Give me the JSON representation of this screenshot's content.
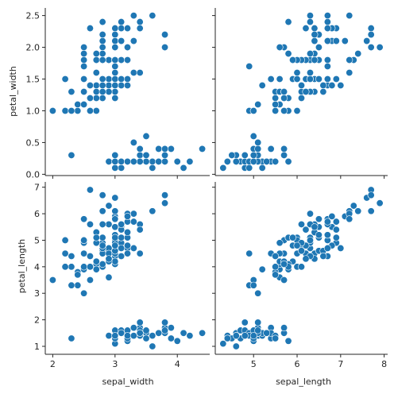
{
  "chart_data": {
    "type": "scatter",
    "kind": "pairgrid",
    "marker_color": "#1f77b4",
    "marker_edge": "#ffffff",
    "grid": false,
    "x_vars": [
      {
        "name": "sepal_width",
        "label": "sepal_width",
        "range": [
          1.88,
          4.52
        ],
        "ticks": [
          2,
          3,
          4
        ]
      },
      {
        "name": "sepal_length",
        "label": "sepal_length",
        "range": [
          4.12,
          8.08
        ],
        "ticks": [
          5,
          6,
          7,
          8
        ]
      }
    ],
    "y_vars": [
      {
        "name": "petal_width",
        "label": "petal_width",
        "range": [
          -0.02,
          2.62
        ],
        "ticks": [
          0.0,
          0.5,
          1.0,
          1.5,
          2.0,
          2.5
        ],
        "tick_labels": [
          "0.0",
          "0.5",
          "1.0",
          "1.5",
          "2.0",
          "2.5"
        ]
      },
      {
        "name": "petal_length",
        "label": "petal_length",
        "range": [
          0.7,
          7.2
        ],
        "ticks": [
          1,
          2,
          3,
          4,
          5,
          6,
          7
        ],
        "tick_labels": [
          "1",
          "2",
          "3",
          "4",
          "5",
          "6",
          "7"
        ]
      }
    ],
    "points": [
      [
        5.1,
        3.5,
        1.4,
        0.2
      ],
      [
        4.9,
        3.0,
        1.4,
        0.2
      ],
      [
        4.7,
        3.2,
        1.3,
        0.2
      ],
      [
        4.6,
        3.1,
        1.5,
        0.2
      ],
      [
        5.0,
        3.6,
        1.4,
        0.2
      ],
      [
        5.4,
        3.9,
        1.7,
        0.4
      ],
      [
        4.6,
        3.4,
        1.4,
        0.3
      ],
      [
        5.0,
        3.4,
        1.5,
        0.2
      ],
      [
        4.4,
        2.9,
        1.4,
        0.2
      ],
      [
        4.9,
        3.1,
        1.5,
        0.1
      ],
      [
        5.4,
        3.7,
        1.5,
        0.2
      ],
      [
        4.8,
        3.4,
        1.6,
        0.2
      ],
      [
        4.8,
        3.0,
        1.4,
        0.1
      ],
      [
        4.3,
        3.0,
        1.1,
        0.1
      ],
      [
        5.8,
        4.0,
        1.2,
        0.2
      ],
      [
        5.7,
        4.4,
        1.5,
        0.4
      ],
      [
        5.4,
        3.9,
        1.3,
        0.4
      ],
      [
        5.1,
        3.5,
        1.4,
        0.3
      ],
      [
        5.7,
        3.8,
        1.7,
        0.3
      ],
      [
        5.1,
        3.8,
        1.5,
        0.3
      ],
      [
        5.4,
        3.4,
        1.7,
        0.2
      ],
      [
        5.1,
        3.7,
        1.5,
        0.4
      ],
      [
        4.6,
        3.6,
        1.0,
        0.2
      ],
      [
        5.1,
        3.3,
        1.7,
        0.5
      ],
      [
        4.8,
        3.4,
        1.9,
        0.2
      ],
      [
        5.0,
        3.0,
        1.6,
        0.2
      ],
      [
        5.0,
        3.4,
        1.6,
        0.4
      ],
      [
        5.2,
        3.5,
        1.5,
        0.2
      ],
      [
        5.2,
        3.4,
        1.4,
        0.2
      ],
      [
        4.7,
        3.2,
        1.6,
        0.2
      ],
      [
        4.8,
        3.1,
        1.6,
        0.2
      ],
      [
        5.4,
        3.4,
        1.5,
        0.4
      ],
      [
        5.2,
        4.1,
        1.5,
        0.1
      ],
      [
        5.5,
        4.2,
        1.4,
        0.2
      ],
      [
        4.9,
        3.1,
        1.5,
        0.2
      ],
      [
        5.0,
        3.2,
        1.2,
        0.2
      ],
      [
        5.5,
        3.5,
        1.3,
        0.2
      ],
      [
        4.9,
        3.6,
        1.4,
        0.1
      ],
      [
        4.4,
        3.0,
        1.3,
        0.2
      ],
      [
        5.1,
        3.4,
        1.5,
        0.2
      ],
      [
        5.0,
        3.5,
        1.3,
        0.3
      ],
      [
        4.5,
        2.3,
        1.3,
        0.3
      ],
      [
        4.4,
        3.2,
        1.3,
        0.2
      ],
      [
        5.0,
        3.5,
        1.6,
        0.6
      ],
      [
        5.1,
        3.8,
        1.9,
        0.4
      ],
      [
        4.8,
        3.0,
        1.4,
        0.3
      ],
      [
        5.1,
        3.8,
        1.6,
        0.2
      ],
      [
        4.6,
        3.2,
        1.4,
        0.2
      ],
      [
        5.3,
        3.7,
        1.5,
        0.2
      ],
      [
        5.0,
        3.3,
        1.4,
        0.2
      ],
      [
        7.0,
        3.2,
        4.7,
        1.4
      ],
      [
        6.4,
        3.2,
        4.5,
        1.5
      ],
      [
        6.9,
        3.1,
        4.9,
        1.5
      ],
      [
        5.5,
        2.3,
        4.0,
        1.3
      ],
      [
        6.5,
        2.8,
        4.6,
        1.5
      ],
      [
        5.7,
        2.8,
        4.5,
        1.3
      ],
      [
        6.3,
        3.3,
        4.7,
        1.6
      ],
      [
        4.9,
        2.4,
        3.3,
        1.0
      ],
      [
        6.6,
        2.9,
        4.6,
        1.3
      ],
      [
        5.2,
        2.7,
        3.9,
        1.4
      ],
      [
        5.0,
        2.0,
        3.5,
        1.0
      ],
      [
        5.9,
        3.0,
        4.2,
        1.5
      ],
      [
        6.0,
        2.2,
        4.0,
        1.0
      ],
      [
        6.1,
        2.9,
        4.7,
        1.4
      ],
      [
        5.6,
        2.9,
        3.6,
        1.3
      ],
      [
        6.7,
        3.1,
        4.4,
        1.4
      ],
      [
        5.6,
        3.0,
        4.5,
        1.5
      ],
      [
        5.8,
        2.7,
        4.1,
        1.0
      ],
      [
        6.2,
        2.2,
        4.5,
        1.5
      ],
      [
        5.6,
        2.5,
        3.9,
        1.1
      ],
      [
        5.9,
        3.2,
        4.8,
        1.8
      ],
      [
        6.1,
        2.8,
        4.0,
        1.3
      ],
      [
        6.3,
        2.5,
        4.9,
        1.5
      ],
      [
        6.1,
        2.8,
        4.7,
        1.2
      ],
      [
        6.4,
        2.9,
        4.3,
        1.3
      ],
      [
        6.6,
        3.0,
        4.4,
        1.4
      ],
      [
        6.8,
        2.8,
        4.8,
        1.4
      ],
      [
        6.7,
        3.0,
        5.0,
        1.7
      ],
      [
        6.0,
        2.9,
        4.5,
        1.5
      ],
      [
        5.7,
        2.6,
        3.5,
        1.0
      ],
      [
        5.5,
        2.4,
        3.8,
        1.1
      ],
      [
        5.5,
        2.4,
        3.7,
        1.0
      ],
      [
        5.8,
        2.7,
        3.9,
        1.2
      ],
      [
        6.0,
        2.7,
        5.1,
        1.6
      ],
      [
        5.4,
        3.0,
        4.5,
        1.5
      ],
      [
        6.0,
        3.4,
        4.5,
        1.6
      ],
      [
        6.7,
        3.1,
        4.7,
        1.5
      ],
      [
        6.3,
        2.3,
        4.4,
        1.3
      ],
      [
        5.6,
        3.0,
        4.1,
        1.3
      ],
      [
        5.5,
        2.5,
        4.0,
        1.3
      ],
      [
        5.5,
        2.6,
        4.4,
        1.2
      ],
      [
        6.1,
        3.0,
        4.6,
        1.4
      ],
      [
        5.8,
        2.6,
        4.0,
        1.2
      ],
      [
        5.0,
        2.3,
        3.3,
        1.0
      ],
      [
        5.6,
        2.7,
        4.2,
        1.3
      ],
      [
        5.7,
        3.0,
        4.2,
        1.2
      ],
      [
        5.7,
        2.9,
        4.2,
        1.3
      ],
      [
        6.2,
        2.9,
        4.3,
        1.3
      ],
      [
        5.1,
        2.5,
        3.0,
        1.1
      ],
      [
        5.7,
        2.8,
        4.1,
        1.3
      ],
      [
        6.3,
        3.3,
        6.0,
        2.5
      ],
      [
        5.8,
        2.7,
        5.1,
        1.9
      ],
      [
        7.1,
        3.0,
        5.9,
        2.1
      ],
      [
        6.3,
        2.9,
        5.6,
        1.8
      ],
      [
        6.5,
        3.0,
        5.8,
        2.2
      ],
      [
        7.6,
        3.0,
        6.6,
        2.1
      ],
      [
        4.9,
        2.5,
        4.5,
        1.7
      ],
      [
        7.3,
        2.9,
        6.3,
        1.8
      ],
      [
        6.7,
        2.5,
        5.8,
        1.8
      ],
      [
        7.2,
        3.6,
        6.1,
        2.5
      ],
      [
        6.5,
        3.2,
        5.1,
        2.0
      ],
      [
        6.4,
        2.7,
        5.3,
        1.9
      ],
      [
        6.8,
        3.0,
        5.5,
        2.1
      ],
      [
        5.7,
        2.5,
        5.0,
        2.0
      ],
      [
        5.8,
        2.8,
        5.1,
        2.4
      ],
      [
        6.4,
        3.2,
        5.3,
        2.3
      ],
      [
        6.5,
        3.0,
        5.5,
        1.8
      ],
      [
        7.7,
        3.8,
        6.7,
        2.2
      ],
      [
        7.7,
        2.6,
        6.9,
        2.3
      ],
      [
        6.0,
        2.2,
        5.0,
        1.5
      ],
      [
        6.9,
        3.2,
        5.7,
        2.3
      ],
      [
        5.6,
        2.8,
        4.9,
        2.0
      ],
      [
        7.7,
        2.8,
        6.7,
        2.0
      ],
      [
        6.3,
        2.7,
        4.9,
        1.8
      ],
      [
        6.7,
        3.3,
        5.7,
        2.1
      ],
      [
        7.2,
        3.2,
        6.0,
        1.8
      ],
      [
        6.2,
        2.8,
        4.8,
        1.8
      ],
      [
        6.1,
        3.0,
        4.9,
        1.8
      ],
      [
        6.4,
        2.8,
        5.6,
        2.1
      ],
      [
        7.2,
        3.0,
        5.8,
        1.6
      ],
      [
        7.4,
        2.8,
        6.1,
        1.9
      ],
      [
        7.9,
        3.8,
        6.4,
        2.0
      ],
      [
        6.4,
        2.8,
        5.6,
        2.2
      ],
      [
        6.3,
        2.8,
        5.1,
        1.5
      ],
      [
        6.1,
        2.6,
        5.6,
        1.4
      ],
      [
        7.7,
        3.0,
        6.1,
        2.3
      ],
      [
        6.3,
        3.4,
        5.6,
        2.4
      ],
      [
        6.4,
        3.1,
        5.5,
        1.8
      ],
      [
        6.0,
        3.0,
        4.8,
        1.8
      ],
      [
        6.9,
        3.1,
        5.4,
        2.1
      ],
      [
        6.7,
        3.1,
        5.6,
        2.4
      ],
      [
        6.9,
        3.1,
        5.1,
        2.3
      ],
      [
        5.8,
        2.7,
        5.1,
        1.9
      ],
      [
        6.8,
        3.2,
        5.9,
        2.3
      ],
      [
        6.7,
        3.3,
        5.7,
        2.5
      ],
      [
        6.7,
        3.0,
        5.2,
        2.3
      ],
      [
        6.3,
        2.5,
        5.0,
        1.9
      ],
      [
        6.5,
        3.0,
        5.2,
        2.0
      ],
      [
        6.2,
        3.4,
        5.4,
        2.3
      ],
      [
        5.9,
        3.0,
        5.1,
        1.8
      ]
    ]
  }
}
